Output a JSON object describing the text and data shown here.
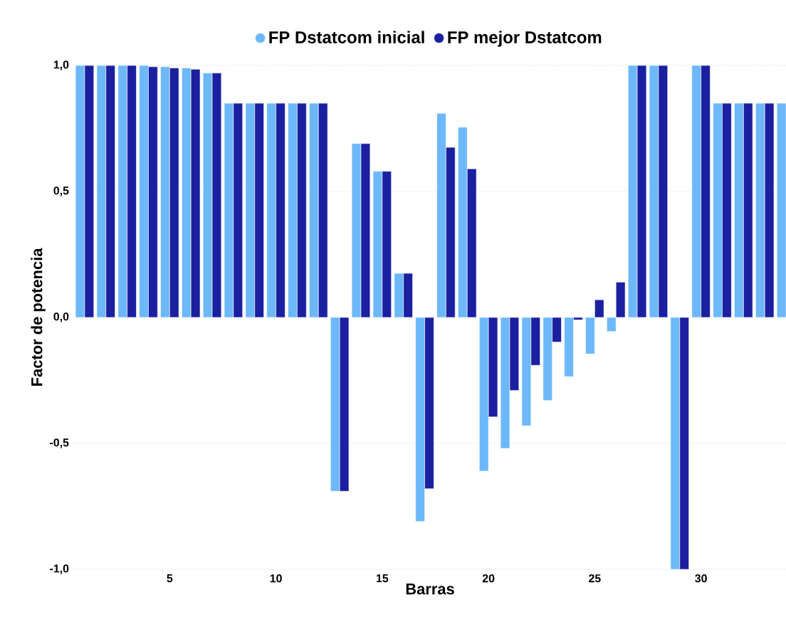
{
  "chart_data": {
    "type": "bar",
    "xlabel": "Barras",
    "ylabel": "Factor de potencia",
    "x": [
      1,
      2,
      3,
      4,
      5,
      6,
      7,
      8,
      9,
      10,
      11,
      12,
      13,
      14,
      15,
      16,
      17,
      18,
      19,
      20,
      21,
      22,
      23,
      24,
      25,
      26,
      27,
      28,
      29,
      30,
      31,
      32,
      33,
      34
    ],
    "series": [
      {
        "name": "FP Dstatcom inicial",
        "color": "#6cb8f8",
        "values": [
          1,
          1,
          1,
          1,
          0.995,
          0.99,
          0.97,
          0.85,
          0.85,
          0.85,
          0.85,
          0.85,
          -0.69,
          0.69,
          0.58,
          0.175,
          -0.81,
          0.81,
          0.755,
          -0.61,
          -0.52,
          -0.43,
          -0.33,
          -0.235,
          -0.145,
          -0.056,
          1,
          1,
          -1,
          1,
          0.85,
          0.85,
          0.85,
          0.85
        ]
      },
      {
        "name": "FP mejor Dstatcom",
        "color": "#1a20a0",
        "values": [
          1,
          1,
          1,
          0.995,
          0.99,
          0.985,
          0.97,
          0.85,
          0.85,
          0.85,
          0.85,
          0.85,
          -0.69,
          0.69,
          0.58,
          0.175,
          -0.68,
          0.675,
          0.59,
          -0.395,
          -0.29,
          -0.19,
          -0.098,
          -0.01,
          0.07,
          0.14,
          1,
          1,
          -1,
          1,
          0.85,
          0.85,
          0.85,
          null
        ]
      }
    ],
    "xlim": [
      0.5,
      34
    ],
    "xticks": [
      5,
      10,
      15,
      20,
      25,
      30
    ],
    "ylim": [
      -1,
      1
    ],
    "yticks": [
      {
        "value": -1,
        "label": "-1,0"
      },
      {
        "value": -0.5,
        "label": "-0,5"
      },
      {
        "value": 0,
        "label": "0,0"
      },
      {
        "value": 0.5,
        "label": "0,5"
      },
      {
        "value": 1,
        "label": "1,0"
      }
    ],
    "grid": "y",
    "legend": "top"
  }
}
